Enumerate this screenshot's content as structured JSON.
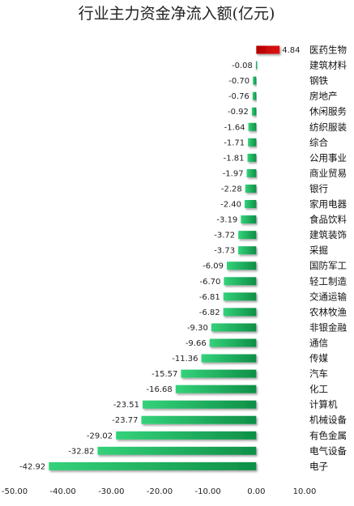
{
  "chart_data": {
    "type": "bar",
    "orientation": "horizontal",
    "title": "行业主力资金净流入额(亿元)",
    "categories": [
      "医药生物",
      "建筑材料",
      "钢铁",
      "房地产",
      "休闲服务",
      "纺织服装",
      "综合",
      "公用事业",
      "商业贸易",
      "银行",
      "家用电器",
      "食品饮料",
      "建筑装饰",
      "采掘",
      "国防军工",
      "轻工制造",
      "交通运输",
      "农林牧渔",
      "非银金融",
      "通信",
      "传媒",
      "汽车",
      "化工",
      "计算机",
      "机械设备",
      "有色金属",
      "电气设备",
      "电子"
    ],
    "values": [
      4.84,
      -0.08,
      -0.7,
      -0.76,
      -0.92,
      -1.64,
      -1.71,
      -1.81,
      -1.97,
      -2.28,
      -2.4,
      -3.19,
      -3.72,
      -3.73,
      -6.09,
      -6.7,
      -6.81,
      -6.82,
      -9.3,
      -9.66,
      -11.36,
      -15.57,
      -16.68,
      -23.51,
      -23.77,
      -29.02,
      -32.82,
      -42.92
    ],
    "value_labels": [
      "4.84",
      "-0.08",
      "-0.70",
      "-0.76",
      "-0.92",
      "-1.64",
      "-1.71",
      "-1.81",
      "-1.97",
      "-2.28",
      "-2.40",
      "-3.19",
      "-3.72",
      "-3.73",
      "-6.09",
      "-6.70",
      "-6.81",
      "-6.82",
      "-9.30",
      "-9.66",
      "-11.36",
      "-15.57",
      "-16.68",
      "-23.51",
      "-23.77",
      "-29.02",
      "-32.82",
      "-42.92"
    ],
    "xlim": [
      -50,
      10
    ],
    "xticks": [
      "-50.00",
      "-40.00",
      "-30.00",
      "-20.00",
      "-10.00",
      "0.00",
      "10.00"
    ],
    "xtick_values": [
      -50,
      -40,
      -30,
      -20,
      -10,
      0,
      10
    ],
    "grid": false,
    "legend": "none",
    "colors": {
      "positive": "#cc0000",
      "negative": "#2ecc71",
      "negative_dark": "#0e8f47"
    }
  }
}
